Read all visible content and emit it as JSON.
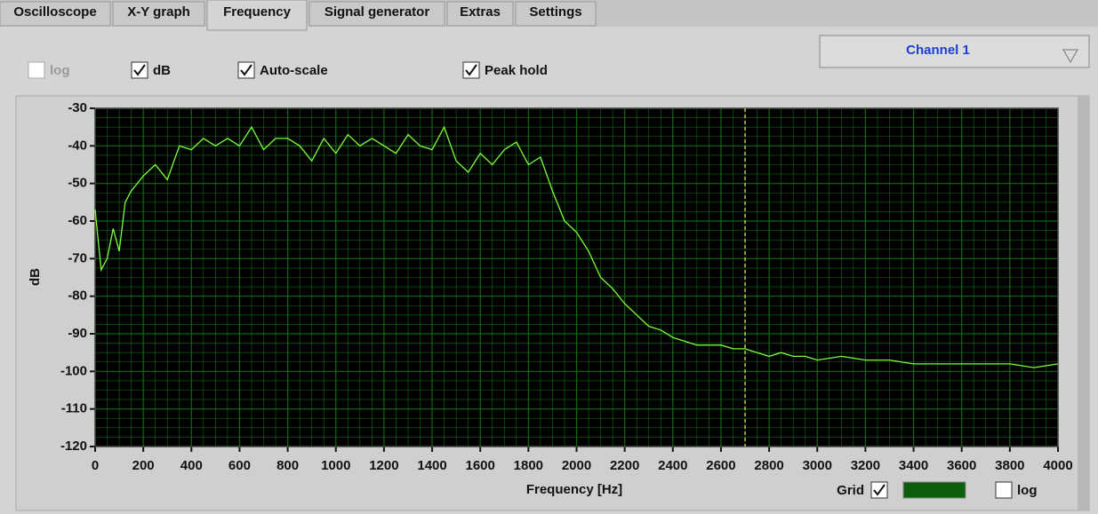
{
  "tabs": [
    "Oscilloscope",
    "X-Y graph",
    "Frequency",
    "Signal generator",
    "Extras",
    "Settings"
  ],
  "active_tab": 2,
  "channel_select": "Channel 1",
  "options": [
    {
      "label": "log",
      "checked": false,
      "enabled": false
    },
    {
      "label": "dB",
      "checked": true,
      "enabled": true
    },
    {
      "label": "Auto-scale",
      "checked": true,
      "enabled": true
    },
    {
      "label": "Peak hold",
      "checked": true,
      "enabled": true
    }
  ],
  "grid_control": {
    "label": "Grid",
    "checked": true,
    "color": "#0b5e0b"
  },
  "log_control": {
    "label": "log",
    "checked": false
  },
  "chart_data": {
    "type": "line",
    "x_label": "Frequency [Hz]",
    "y_label": "dB",
    "xlim": [
      0,
      4000
    ],
    "ylim": [
      -120,
      -30
    ],
    "xticks": [
      0,
      200,
      400,
      600,
      800,
      1000,
      1200,
      1400,
      1600,
      1800,
      2000,
      2200,
      2400,
      2600,
      2800,
      3000,
      3200,
      3400,
      3600,
      3800,
      4000
    ],
    "yticks": [
      -120,
      -110,
      -100,
      -90,
      -80,
      -70,
      -60,
      -50,
      -40,
      -30
    ],
    "grid": true,
    "cursor_x": 2700,
    "cursor_color": "#e8e060",
    "background": "#000000",
    "grid_color": "#0f6a0f",
    "x": [
      0,
      25,
      50,
      75,
      100,
      125,
      150,
      200,
      250,
      300,
      350,
      400,
      450,
      500,
      550,
      600,
      650,
      700,
      750,
      800,
      850,
      900,
      950,
      1000,
      1050,
      1100,
      1150,
      1200,
      1250,
      1300,
      1350,
      1400,
      1450,
      1500,
      1550,
      1600,
      1650,
      1700,
      1750,
      1800,
      1850,
      1900,
      1950,
      2000,
      2050,
      2100,
      2150,
      2200,
      2250,
      2300,
      2350,
      2400,
      2450,
      2500,
      2550,
      2600,
      2650,
      2700,
      2750,
      2800,
      2850,
      2900,
      2950,
      3000,
      3100,
      3200,
      3300,
      3400,
      3500,
      3600,
      3700,
      3800,
      3900,
      4000
    ],
    "series": [
      {
        "color": "#7cff3a",
        "values": [
          -57,
          -73,
          -70,
          -62,
          -68,
          -55,
          -52,
          -48,
          -45,
          -49,
          -40,
          -41,
          -38,
          -40,
          -38,
          -40,
          -35,
          -41,
          -38,
          -38,
          -40,
          -44,
          -38,
          -42,
          -37,
          -40,
          -38,
          -40,
          -42,
          -37,
          -40,
          -41,
          -35,
          -44,
          -47,
          -42,
          -45,
          -41,
          -39,
          -45,
          -43,
          -52,
          -60,
          -63,
          -68,
          -75,
          -78,
          -82,
          -85,
          -88,
          -89,
          -91,
          -92,
          -93,
          -93,
          -93,
          -94,
          -94,
          -95,
          -96,
          -95,
          -96,
          -96,
          -97,
          -96,
          -97,
          -97,
          -98,
          -98,
          -98,
          -98,
          -98,
          -99,
          -98
        ]
      }
    ]
  }
}
